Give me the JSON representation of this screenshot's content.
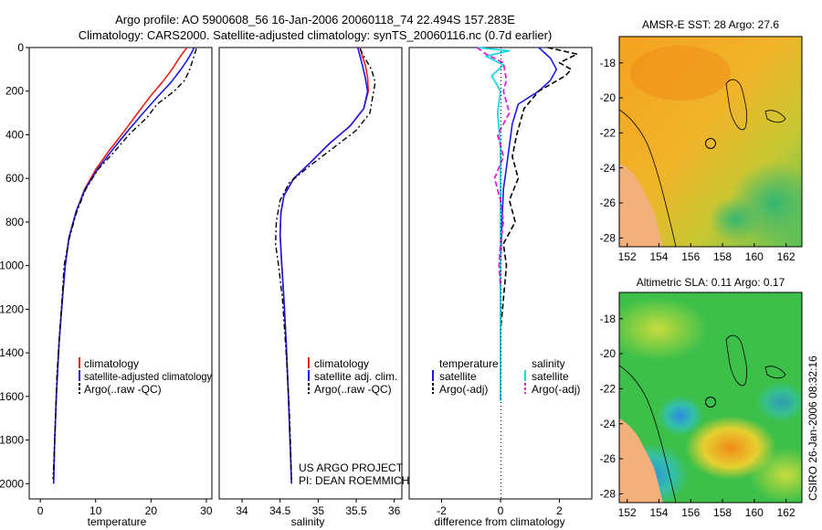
{
  "header": {
    "line1": "Argo profile: AO 5900608_56 16-Jan-2006 20060118_74 22.494S 157.283E",
    "line2": "Climatology: CARS2000. Satellite-adjusted climatology: synTS_20060116.nc (0.7d earlier)"
  },
  "credits": {
    "project": "US ARGO PROJECT",
    "pi": "PI: DEAN ROEMMICH",
    "stamp": "CSIRO 26-Jan-2006 08:32:16"
  },
  "colors": {
    "climatology": "#e8201a",
    "satellite": "#1a1ae6",
    "argo": "#000000",
    "salinity_satellite": "#19d8e8",
    "salinity_argo": "#e020e0",
    "land": "#f2b07a"
  },
  "chart_data": [
    {
      "type": "line",
      "id": "temperature",
      "xlabel": "temperature",
      "ylabel": "",
      "xlim": [
        -2,
        31
      ],
      "ylim": [
        2070,
        0
      ],
      "xticks": [
        "0",
        "10",
        "20",
        "30"
      ],
      "yticks": [
        "0",
        "200",
        "400",
        "600",
        "800",
        "1000",
        "1200",
        "1400",
        "1600",
        "1800",
        "2000"
      ],
      "legend": [
        "climatology",
        "satellite-adjusted climatology",
        "Argo(..raw -QC)"
      ],
      "series": [
        {
          "name": "climatology",
          "x": [
            26.5,
            25.6,
            24.8,
            23.8,
            22.0,
            20.0,
            17.6,
            15.3,
            12.5,
            10.0,
            8.0,
            6.5,
            5.2,
            4.5,
            4.0,
            3.4,
            2.9,
            2.6,
            2.4
          ],
          "y": [
            0,
            30,
            60,
            100,
            160,
            220,
            300,
            380,
            470,
            560,
            650,
            750,
            870,
            1000,
            1150,
            1350,
            1600,
            1800,
            2000
          ]
        },
        {
          "name": "satellite-adjusted climatology",
          "x": [
            27.8,
            27.2,
            26.5,
            25.4,
            23.6,
            21.4,
            18.6,
            15.9,
            13.0,
            10.3,
            8.1,
            6.5,
            5.2,
            4.5,
            4.0,
            3.4,
            2.9,
            2.6,
            2.4
          ],
          "y": [
            0,
            30,
            60,
            100,
            160,
            220,
            300,
            380,
            470,
            560,
            650,
            750,
            870,
            1000,
            1150,
            1350,
            1600,
            1800,
            2000
          ]
        },
        {
          "name": "Argo(..raw -QC)",
          "x": [
            28.2,
            27.9,
            27.5,
            27.0,
            26.1,
            24.2,
            21.1,
            19.3,
            16.0,
            13.3,
            10.4,
            8.2,
            6.5,
            5.2,
            4.3,
            3.8,
            3.0,
            2.6,
            2.3
          ],
          "y": [
            5,
            30,
            60,
            100,
            150,
            200,
            260,
            320,
            400,
            480,
            560,
            650,
            760,
            880,
            1000,
            1200,
            1500,
            1800,
            1980
          ]
        }
      ]
    },
    {
      "type": "line",
      "id": "salinity",
      "xlabel": "salinity",
      "ylabel": "",
      "xlim": [
        33.7,
        36.1
      ],
      "ylim": [
        2070,
        0
      ],
      "xticks": [
        "34",
        "34.5",
        "35",
        "35.5",
        "36"
      ],
      "yticks": [],
      "legend": [
        "climatology",
        "satellite adj. clim.",
        "Argo(..raw -QC)"
      ],
      "series": [
        {
          "name": "climatology",
          "x": [
            35.55,
            35.58,
            35.62,
            35.65,
            35.66,
            35.6,
            35.42,
            35.15,
            34.92,
            34.68,
            34.55,
            34.51,
            34.5,
            34.52,
            34.55,
            34.58,
            34.61,
            34.63,
            34.65
          ],
          "y": [
            0,
            40,
            80,
            140,
            200,
            280,
            360,
            440,
            520,
            600,
            680,
            760,
            860,
            980,
            1150,
            1350,
            1600,
            1800,
            2000
          ]
        },
        {
          "name": "satellite adj. clim.",
          "x": [
            35.52,
            35.55,
            35.58,
            35.62,
            35.65,
            35.6,
            35.42,
            35.15,
            34.92,
            34.68,
            34.55,
            34.51,
            34.5,
            34.52,
            34.55,
            34.58,
            34.61,
            34.63,
            34.65
          ],
          "y": [
            0,
            40,
            80,
            140,
            200,
            280,
            360,
            440,
            520,
            600,
            680,
            760,
            860,
            980,
            1150,
            1350,
            1600,
            1800,
            2000
          ]
        },
        {
          "name": "Argo(..raw -QC)",
          "x": [
            35.55,
            35.6,
            35.7,
            35.75,
            35.72,
            35.68,
            35.5,
            35.2,
            34.9,
            34.62,
            34.5,
            34.45,
            34.44,
            34.48,
            34.53,
            34.58,
            34.62,
            34.64,
            34.65
          ],
          "y": [
            5,
            40,
            100,
            160,
            220,
            300,
            380,
            460,
            540,
            620,
            700,
            800,
            900,
            1000,
            1150,
            1400,
            1650,
            1850,
            1980
          ]
        }
      ]
    },
    {
      "type": "line",
      "id": "difference",
      "xlabel": "difference from climatology",
      "ylabel": "",
      "xlim": [
        -3.1,
        3.1
      ],
      "ylim": [
        2070,
        0
      ],
      "xticks": [
        "-2",
        "0",
        "2"
      ],
      "yticks": [],
      "legend": [
        "temperature",
        "satellite",
        "Argo(-adj)",
        "salinity",
        "satellite",
        "Argo(-adj)"
      ],
      "series": [
        {
          "name": "temperature satellite",
          "x": [
            1.3,
            1.7,
            1.9,
            1.7,
            1.3,
            0.6,
            0.4,
            0.3,
            0.2,
            0.1,
            0.05,
            0.0,
            0.0,
            0.0,
            0.0
          ],
          "y": [
            0,
            50,
            100,
            150,
            200,
            260,
            350,
            450,
            550,
            650,
            800,
            1000,
            1300,
            1600,
            1620
          ]
        },
        {
          "name": "temperature Argo(-adj)",
          "x": [
            1.6,
            2.6,
            2.0,
            2.4,
            2.2,
            1.3,
            0.8,
            0.55,
            0.4,
            0.6,
            0.3,
            0.5,
            0.1,
            0.2,
            0.15,
            0.0,
            0.0,
            0.0
          ],
          "y": [
            0,
            30,
            70,
            100,
            130,
            200,
            280,
            400,
            500,
            600,
            700,
            800,
            900,
            1000,
            1080,
            1300,
            1500,
            1620
          ]
        },
        {
          "name": "salinity satellite",
          "x": [
            -0.8,
            0.3,
            -0.5,
            0.1,
            -0.3,
            0.0,
            -0.1,
            0.0,
            0.0,
            0.0,
            0.0,
            0.0,
            0.0
          ],
          "y": [
            0,
            15,
            40,
            80,
            130,
            200,
            300,
            450,
            600,
            800,
            1100,
            1400,
            1620
          ]
        },
        {
          "name": "salinity Argo(-adj)",
          "x": [
            -0.8,
            -0.5,
            0.1,
            0.2,
            0.1,
            0.3,
            -0.1,
            0.1,
            -0.2,
            0.0,
            0.1,
            0.0,
            -0.05,
            0.0
          ],
          "y": [
            0,
            30,
            70,
            150,
            200,
            300,
            400,
            500,
            600,
            700,
            800,
            900,
            1000,
            1100
          ]
        }
      ]
    },
    {
      "type": "heatmap",
      "id": "sst_map",
      "title": "AMSR-E SST: 28 Argo: 27.6",
      "xlim": [
        151.5,
        163
      ],
      "ylim": [
        -28.5,
        -16.5
      ],
      "xticks": [
        "152",
        "154",
        "156",
        "158",
        "160",
        "162"
      ],
      "yticks": [
        "-18",
        "-20",
        "-22",
        "-24",
        "-26",
        "-28"
      ]
    },
    {
      "type": "heatmap",
      "id": "sla_map",
      "title": "Altimetric SLA: 0.11 Argo: 0.17",
      "xlim": [
        151.5,
        163
      ],
      "ylim": [
        -28.5,
        -16.5
      ],
      "xticks": [
        "152",
        "154",
        "156",
        "158",
        "160",
        "162"
      ],
      "yticks": [
        "-18",
        "-20",
        "-22",
        "-24",
        "-26",
        "-28"
      ]
    }
  ]
}
